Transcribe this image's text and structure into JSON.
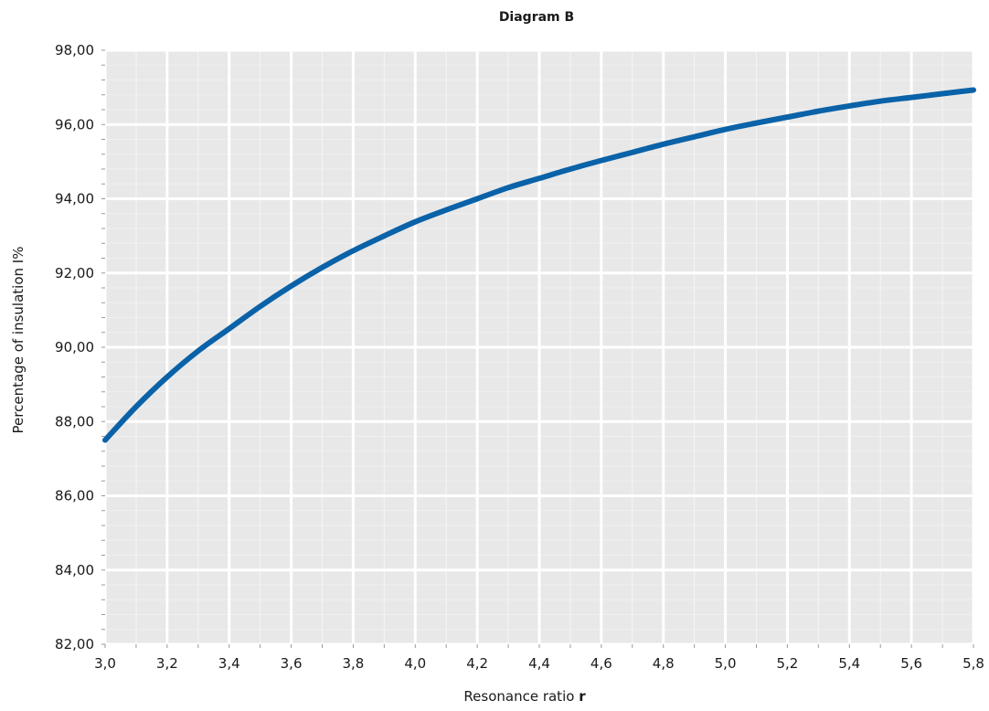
{
  "chart_data": {
    "type": "line",
    "title": "Diagram B",
    "xlabel": "Resonance ratio ",
    "xlabel_bold": "r",
    "ylabel": "Percentage of insulation I%",
    "xlim": [
      3.0,
      5.8
    ],
    "ylim": [
      82.0,
      98.0
    ],
    "x_ticks": [
      "3,0",
      "3,2",
      "3,4",
      "3,6",
      "3,8",
      "4,0",
      "4,2",
      "4,4",
      "4,6",
      "4,8",
      "5,0",
      "5,2",
      "5,4",
      "5,6",
      "5,8"
    ],
    "y_ticks": [
      "82,00",
      "84,00",
      "86,00",
      "88,00",
      "90,00",
      "92,00",
      "94,00",
      "96,00",
      "98,00"
    ],
    "grid": true,
    "series": [
      {
        "color": "#0a62a8",
        "x": [
          3.0,
          3.1,
          3.2,
          3.3,
          3.4,
          3.5,
          3.6,
          3.7,
          3.8,
          3.9,
          4.0,
          4.1,
          4.2,
          4.3,
          4.4,
          4.5,
          4.6,
          4.7,
          4.8,
          4.9,
          5.0,
          5.1,
          5.2,
          5.3,
          5.4,
          5.5,
          5.6,
          5.7,
          5.8
        ],
        "y": [
          87.5,
          88.4,
          89.2,
          89.9,
          90.5,
          91.1,
          91.65,
          92.15,
          92.6,
          93.0,
          93.38,
          93.7,
          94.0,
          94.3,
          94.55,
          94.8,
          95.03,
          95.25,
          95.47,
          95.67,
          95.87,
          96.04,
          96.2,
          96.36,
          96.5,
          96.63,
          96.73,
          96.83,
          96.93
        ]
      }
    ],
    "colors": {
      "plot_background": "#e8e8e8",
      "grid": "#ffffff",
      "line": "#0a62a8"
    }
  }
}
